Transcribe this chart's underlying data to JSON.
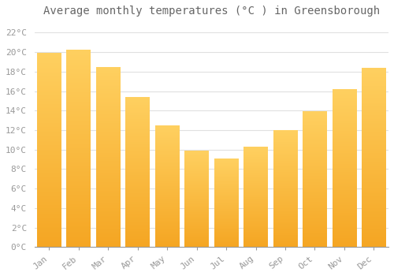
{
  "title": "Average monthly temperatures (°C ) in Greensborough",
  "months": [
    "Jan",
    "Feb",
    "Mar",
    "Apr",
    "May",
    "Jun",
    "Jul",
    "Aug",
    "Sep",
    "Oct",
    "Nov",
    "Dec"
  ],
  "values": [
    19.9,
    20.2,
    18.4,
    15.3,
    12.4,
    9.8,
    9.0,
    10.2,
    11.9,
    13.9,
    16.1,
    18.3
  ],
  "bar_color_bottom": "#F5A623",
  "bar_color_top": "#FFD060",
  "ylim": [
    0,
    23
  ],
  "ytick_step": 2,
  "background_color": "#ffffff",
  "grid_color": "#e0e0e0",
  "title_fontsize": 10,
  "tick_fontsize": 8,
  "tick_color": "#999999",
  "title_color": "#666666",
  "font_family": "monospace",
  "bar_width": 0.82
}
